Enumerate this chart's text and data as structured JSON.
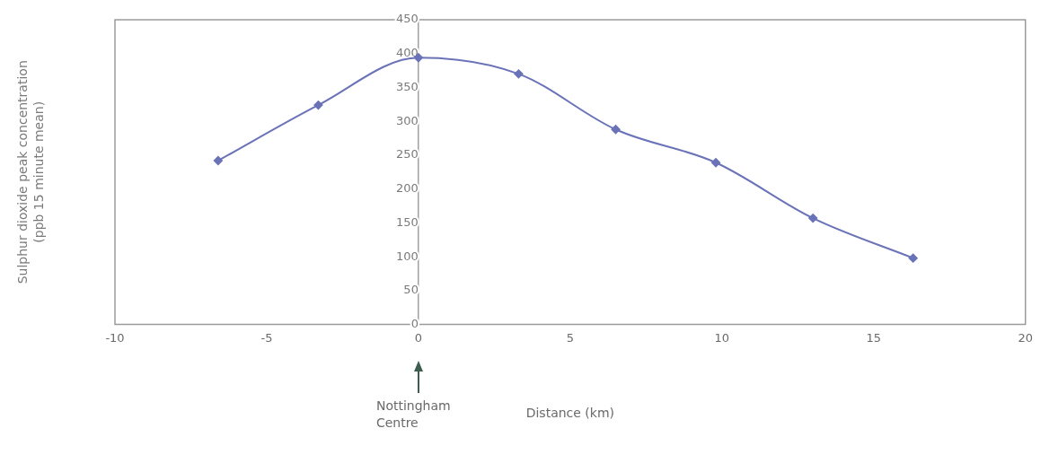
{
  "chart_data": {
    "type": "line",
    "xlabel": "Distance (km)",
    "ylabel": "Sulphur dioxide peak concentration\n(ppb 15 minute mean)",
    "x": [
      -6.6,
      -3.3,
      0,
      3.3,
      6.5,
      9.8,
      13,
      16.3
    ],
    "series": [
      {
        "color": "#6a72b8",
        "values": [
          242,
          324,
          394,
          370,
          288,
          239,
          157,
          98
        ]
      }
    ],
    "xlim": [
      -10,
      20
    ],
    "xticks": [
      -10,
      -5,
      0,
      5,
      10,
      15,
      20
    ],
    "ylim": [
      0,
      450
    ],
    "yticks": [
      0,
      50,
      100,
      150,
      200,
      250,
      300,
      350,
      400,
      450
    ],
    "grid": false,
    "legend": false,
    "marker": "diamond",
    "line_style": "solid",
    "annotations": [
      "Nottingham\nCentre"
    ]
  }
}
